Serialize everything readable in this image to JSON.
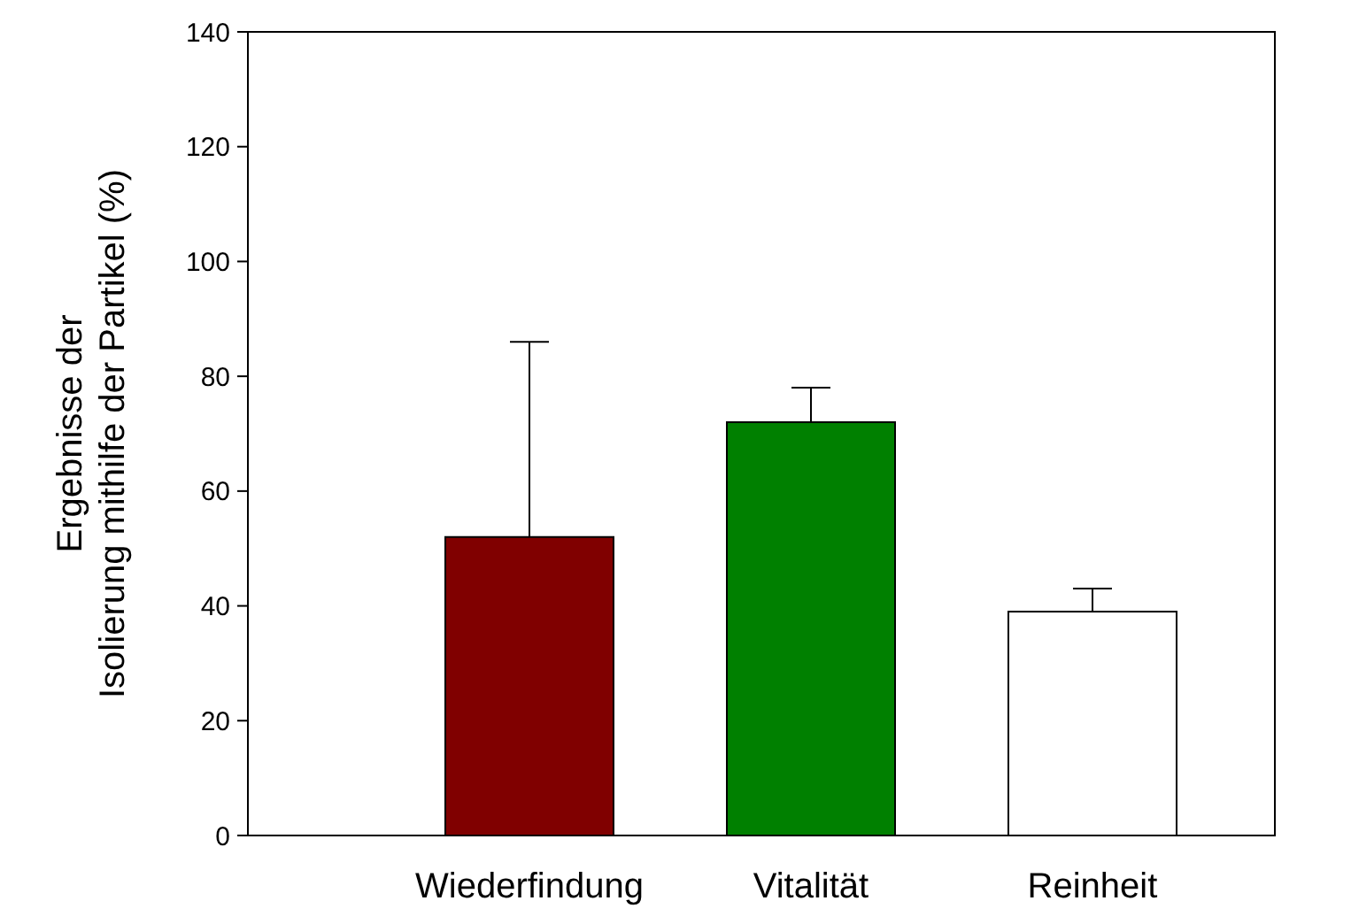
{
  "chart_data": {
    "type": "bar",
    "ylabel": "Ergebnisse der\nIsolierung mithilfe der Partikel (%)",
    "categories": [
      "Wiederfindung",
      "Vitalität",
      "Reinheit"
    ],
    "values": [
      52,
      72,
      39
    ],
    "colors": [
      "#800000",
      "#008000",
      "#ffffff"
    ],
    "errors": [
      [
        52,
        86
      ],
      [
        72,
        78
      ],
      [
        39,
        43
      ]
    ],
    "ylim": [
      0,
      140
    ],
    "yticks": [
      0,
      20,
      40,
      60,
      80,
      100,
      120,
      140
    ]
  }
}
